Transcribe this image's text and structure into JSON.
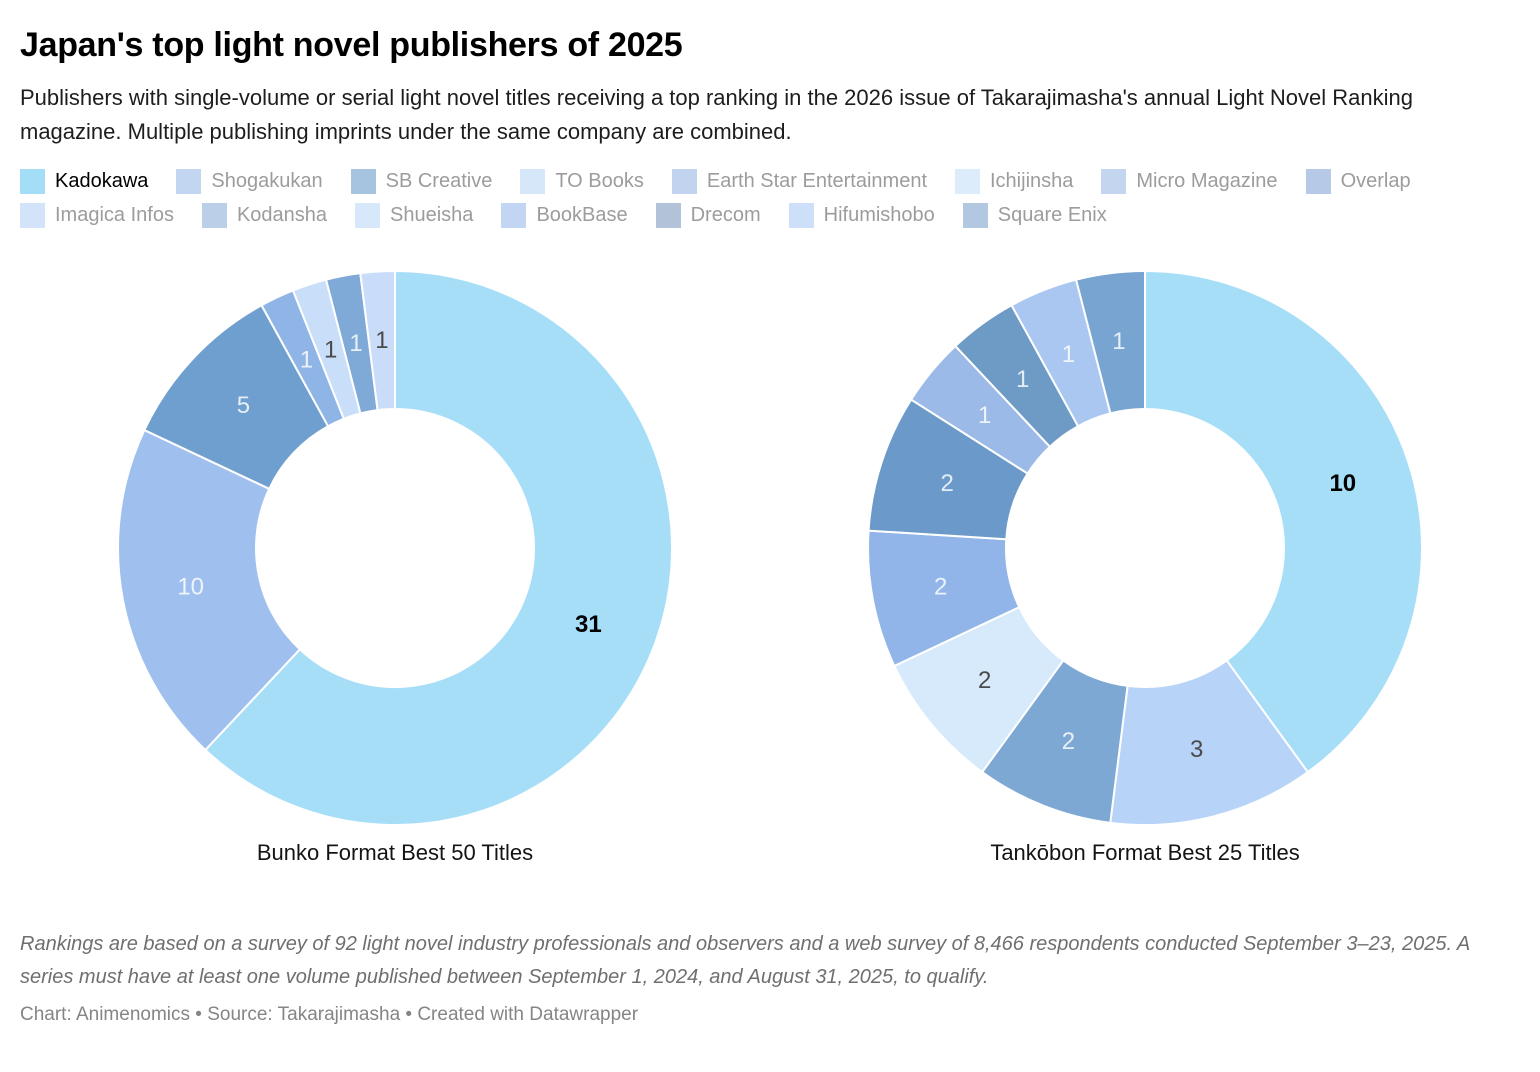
{
  "header": {
    "title": "Japan's top light novel publishers of 2025",
    "subtitle": "Publishers with single-volume or serial light novel titles receiving a top ranking in the 2026 issue of Takarajimasha's annual Light Novel Ranking magazine. Multiple publishing imprints under the same company are combined."
  },
  "legend": {
    "selected": "Kadokawa",
    "text_color": "#9c9c9c",
    "text_color_selected": "#000000",
    "rows": [
      [
        {
          "label": "Kadokawa",
          "color": "#a4ddf6"
        },
        {
          "label": "Shogakukan",
          "color": "#c3d6f1"
        },
        {
          "label": "SB Creative",
          "color": "#a6c3e0"
        },
        {
          "label": "TO Books",
          "color": "#d7e7fa"
        },
        {
          "label": "Earth Star Entertainment",
          "color": "#c2d3ef"
        },
        {
          "label": "Ichijinsha",
          "color": "#dcecfb"
        },
        {
          "label": "Micro Magazine",
          "color": "#c3d5ef"
        },
        {
          "label": "Overlap",
          "color": "#b6cae8"
        }
      ],
      [
        {
          "label": "Imagica Infos",
          "color": "#d3e3fa"
        },
        {
          "label": "Kodansha",
          "color": "#bccfe9"
        },
        {
          "label": "Shueisha",
          "color": "#d8e8fb"
        },
        {
          "label": "BookBase",
          "color": "#c2d5f3"
        },
        {
          "label": "Drecom",
          "color": "#b2c3d9"
        },
        {
          "label": "Hifumishobo",
          "color": "#cedffa"
        },
        {
          "label": "Square Enix",
          "color": "#b2c8e1"
        }
      ]
    ]
  },
  "label_colors": {
    "selected": "#000000",
    "light": "rgba(255,255,255,0.82)",
    "dark": "#4b4b4b"
  },
  "chart_data": [
    {
      "type": "pie",
      "title": "Bunko Format Best 50 Titles",
      "total": 50,
      "legend_position": "top",
      "slices": [
        {
          "label": "Kadokawa",
          "value": 31,
          "color": "#a6def8",
          "label_style": "selected"
        },
        {
          "label": "Shogakukan",
          "value": 10,
          "color": "#9fc0ee",
          "label_style": "light"
        },
        {
          "label": "SB Creative",
          "value": 5,
          "color": "#6f9fcf",
          "label_style": "light"
        },
        {
          "label": "BookBase",
          "value": 1,
          "color": "#8fb4e6",
          "label_style": "light"
        },
        {
          "label": "Shueisha",
          "value": 1,
          "color": "#c9def8",
          "label_style": "dark"
        },
        {
          "label": "Overlap",
          "value": 1,
          "color": "#7fa9d6",
          "label_style": "light"
        },
        {
          "label": "Imagica Infos",
          "value": 1,
          "color": "#c9ddfa",
          "label_style": "dark"
        }
      ]
    },
    {
      "type": "pie",
      "title": "Tankōbon Format Best 25 Titles",
      "total": 25,
      "legend_position": "top",
      "slices": [
        {
          "label": "Kadokawa",
          "value": 10,
          "color": "#a6def8",
          "label_style": "selected"
        },
        {
          "label": "TO Books",
          "value": 3,
          "color": "#b7d3f8",
          "label_style": "dark"
        },
        {
          "label": "Overlap",
          "value": 2,
          "color": "#7ea8d4",
          "label_style": "light"
        },
        {
          "label": "Ichijinsha",
          "value": 2,
          "color": "#d6eafc",
          "label_style": "dark"
        },
        {
          "label": "Earth Star Entertainment",
          "value": 2,
          "color": "#91b5e9",
          "label_style": "light"
        },
        {
          "label": "Drecom",
          "value": 2,
          "color": "#6b9aca",
          "label_style": "light"
        },
        {
          "label": "Micro Magazine",
          "value": 1,
          "color": "#9cbae8",
          "label_style": "light"
        },
        {
          "label": "Square Enix",
          "value": 1,
          "color": "#6e9ac6",
          "label_style": "light"
        },
        {
          "label": "Hifumishobo",
          "value": 1,
          "color": "#a9c7f1",
          "label_style": "light"
        },
        {
          "label": "Kodansha",
          "value": 1,
          "color": "#78a4d2",
          "label_style": "light"
        }
      ]
    }
  ],
  "footer": {
    "notes": "Rankings are based on a survey of 92 light novel industry professionals and observers and a web survey of 8,466 respondents conducted September 3–23, 2025. A series must have at least one volume published between September 1, 2024, and August 31, 2025, to qualify.",
    "byline": "Chart: Animenomics • Source: Takarajimasha • Created with Datawrapper"
  }
}
